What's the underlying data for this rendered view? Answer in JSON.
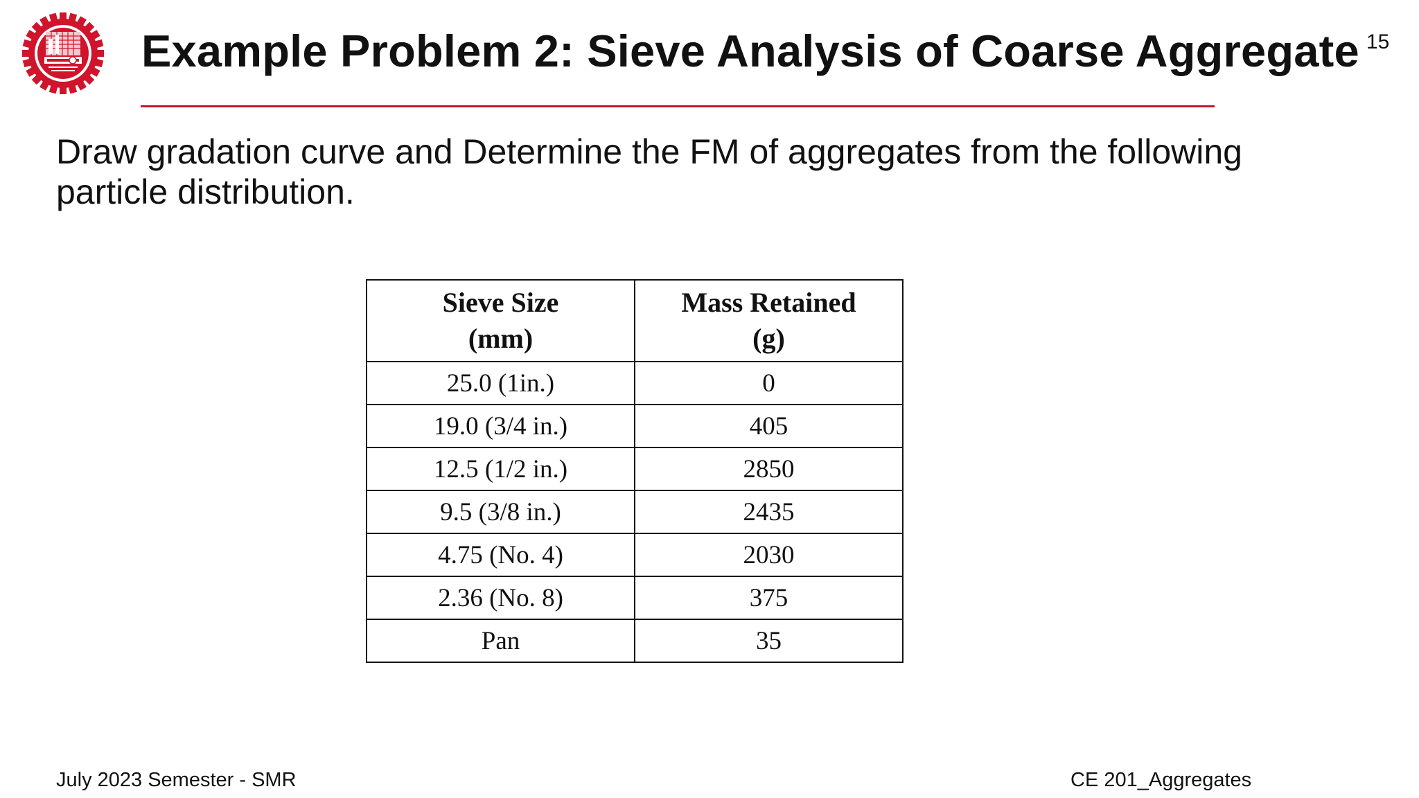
{
  "slide": {
    "title": "Example Problem 2: Sieve Analysis of Coarse Aggregate",
    "number": "15",
    "instructions": "Draw gradation curve and Determine the FM of aggregates from the following particle distribution."
  },
  "table": {
    "headers": [
      {
        "line1": "Sieve Size",
        "line2": "(mm)"
      },
      {
        "line1": "Mass Retained",
        "line2": "(g)"
      }
    ],
    "rows": [
      {
        "sieve": "25.0 (1in.)",
        "mass": "0"
      },
      {
        "sieve": "19.0 (3/4 in.)",
        "mass": "405"
      },
      {
        "sieve": "12.5 (1/2 in.)",
        "mass": "2850"
      },
      {
        "sieve": "9.5 (3/8 in.)",
        "mass": "2435"
      },
      {
        "sieve": "4.75 (No. 4)",
        "mass": "2030"
      },
      {
        "sieve": "2.36 (No. 8)",
        "mass": "375"
      },
      {
        "sieve": "Pan",
        "mass": "35"
      }
    ]
  },
  "footer": {
    "left": "July 2023 Semester - SMR",
    "right": "CE 201_Aggregates"
  },
  "colors": {
    "accent": "#c8102e",
    "logo_red": "#d0142c",
    "text": "#111111"
  },
  "icons": {
    "logo": "university-gear-logo-icon"
  }
}
